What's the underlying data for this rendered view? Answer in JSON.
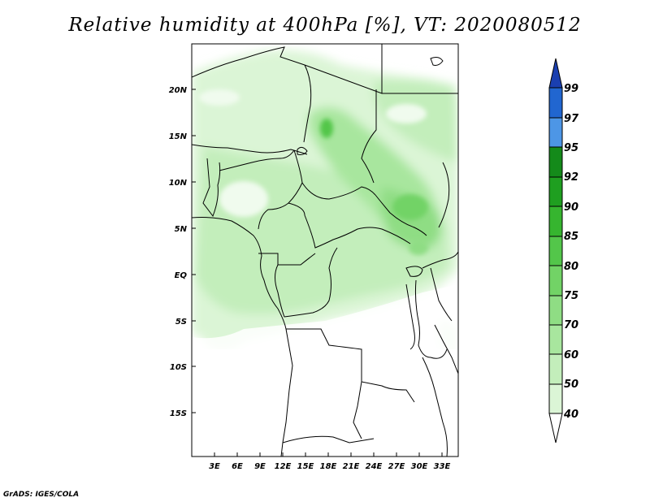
{
  "title": "Relative humidity at 400hPa [%], VT: 2020080512",
  "credit": "GrADS: IGES/COLA",
  "map": {
    "lat_labels": [
      "20N",
      "15N",
      "10N",
      "5N",
      "EQ",
      "5S",
      "10S",
      "15S"
    ],
    "lon_labels": [
      "3E",
      "6E",
      "9E",
      "12E",
      "15E",
      "18E",
      "21E",
      "24E",
      "27E",
      "30E",
      "33E"
    ],
    "lat_range": [
      -20,
      24.5
    ],
    "lon_range": [
      0,
      35
    ],
    "field": "relative humidity",
    "level": "400hPa",
    "unit": "%",
    "valid_time": "2020080512"
  },
  "colorbar": {
    "levels": [
      "40",
      "50",
      "60",
      "70",
      "75",
      "80",
      "85",
      "90",
      "92",
      "95",
      "97",
      "99"
    ],
    "colors": [
      "#f0fbee",
      "#dbf5d6",
      "#c3eebb",
      "#a8e69e",
      "#8fdd84",
      "#72d366",
      "#53c64a",
      "#36b52f",
      "#1f9f20",
      "#148a1a",
      "#4d96e6",
      "#2166d0",
      "#1a3fb0"
    ]
  }
}
